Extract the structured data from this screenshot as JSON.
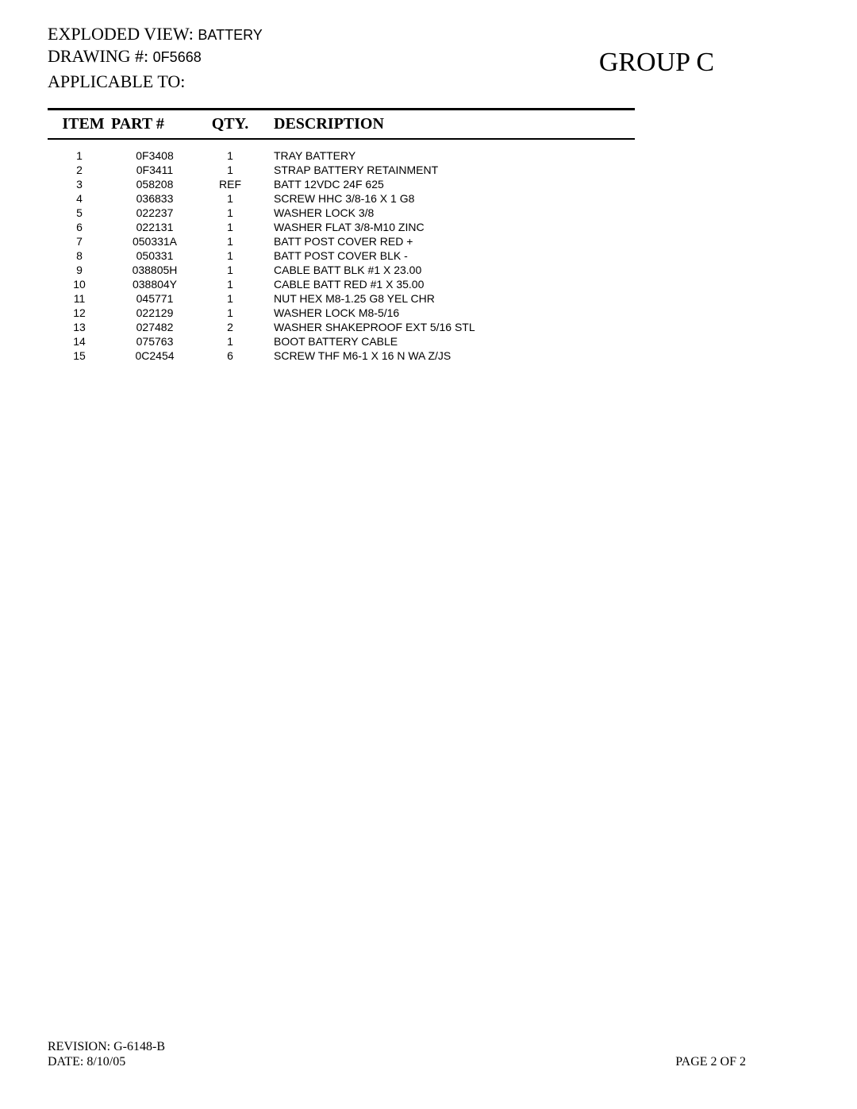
{
  "header": {
    "exploded_view_label": "EXPLODED VIEW:",
    "exploded_view_value": "BATTERY",
    "drawing_label": "DRAWING #:",
    "drawing_value": "0F5668",
    "applicable_to_label": "APPLICABLE TO:",
    "group_label": "GROUP  C"
  },
  "table": {
    "columns": {
      "item": "ITEM",
      "part": "PART #",
      "qty": "QTY.",
      "desc": "DESCRIPTION"
    },
    "rows": [
      {
        "item": "1",
        "part": "0F3408",
        "qty": "1",
        "desc": "TRAY BATTERY"
      },
      {
        "item": "2",
        "part": "0F3411",
        "qty": "1",
        "desc": "STRAP BATTERY RETAINMENT"
      },
      {
        "item": "3",
        "part": "058208",
        "qty": "REF",
        "desc": "BATT 12VDC 24F 625"
      },
      {
        "item": "4",
        "part": "036833",
        "qty": "1",
        "desc": "SCREW HHC 3/8-16 X 1 G8"
      },
      {
        "item": "5",
        "part": "022237",
        "qty": "1",
        "desc": "WASHER LOCK 3/8"
      },
      {
        "item": "6",
        "part": "022131",
        "qty": "1",
        "desc": "WASHER FLAT 3/8-M10 ZINC"
      },
      {
        "item": "7",
        "part": "050331A",
        "qty": "1",
        "desc": "BATT POST COVER RED +"
      },
      {
        "item": "8",
        "part": "050331",
        "qty": "1",
        "desc": "BATT POST COVER BLK -"
      },
      {
        "item": "9",
        "part": "038805H",
        "qty": "1",
        "desc": "CABLE BATT BLK #1 X 23.00"
      },
      {
        "item": "10",
        "part": "038804Y",
        "qty": "1",
        "desc": "CABLE BATT RED #1 X 35.00"
      },
      {
        "item": "11",
        "part": "045771",
        "qty": "1",
        "desc": "NUT HEX M8-1.25 G8 YEL CHR"
      },
      {
        "item": "12",
        "part": "022129",
        "qty": "1",
        "desc": "WASHER LOCK M8-5/16"
      },
      {
        "item": "13",
        "part": "027482",
        "qty": "2",
        "desc": "WASHER SHAKEPROOF EXT 5/16 STL"
      },
      {
        "item": "14",
        "part": "075763",
        "qty": "1",
        "desc": "BOOT BATTERY CABLE"
      },
      {
        "item": "15",
        "part": "0C2454",
        "qty": "6",
        "desc": "SCREW THF M6-1 X 16 N WA Z/JS"
      }
    ]
  },
  "footer": {
    "revision_label": "REVISION:",
    "revision_value": "G-6148-B",
    "date_label": "DATE:",
    "date_value": "8/10/05",
    "page_label": "PAGE 2 OF 2"
  }
}
